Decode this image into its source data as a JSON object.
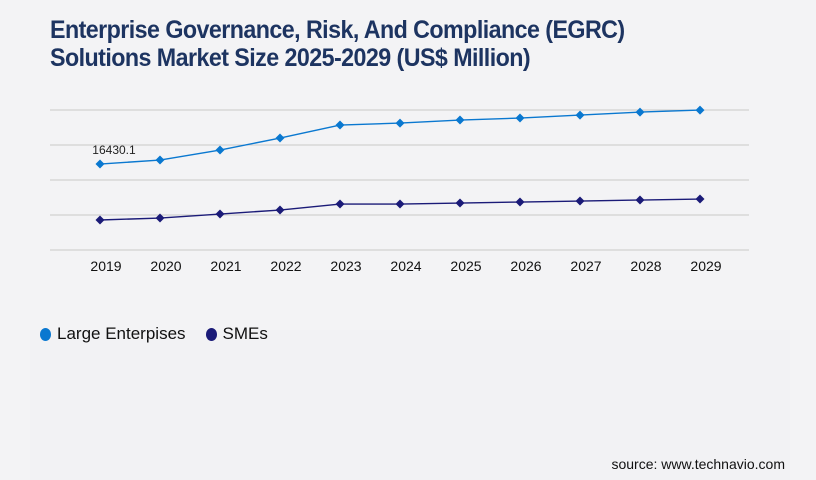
{
  "title": {
    "line1": "Enterprise Governance, Risk, And Compliance (EGRC)",
    "line2": "Solutions Market Size 2025-2029 (US$ Million)"
  },
  "source": "source: www.technavio.com",
  "colors": {
    "large_enterprises": "#0a78d0",
    "smes": "#1b1b78",
    "gridline": "#c8c8c8",
    "title": "#1d3461"
  },
  "legend": [
    {
      "label": "Large Enterpises",
      "color": "#0a78d0"
    },
    {
      "label": "SMEs",
      "color": "#1b1b78"
    }
  ],
  "chart_data": {
    "type": "line",
    "title": "Enterprise Governance, Risk, And Compliance (EGRC) Solutions Market Size 2025-2029 (US$ Million)",
    "xlabel": "",
    "ylabel": "",
    "x": [
      "2019",
      "2020",
      "2021",
      "2022",
      "2023",
      "2024",
      "2025",
      "2026",
      "2027",
      "2028",
      "2029"
    ],
    "ylim": [
      0,
      33450
    ],
    "grid": true,
    "legend_position": "bottom-left",
    "series": [
      {
        "name": "Large Enterpises",
        "values": [
          16430.1,
          17195,
          19105,
          21398,
          23881,
          24263,
          24837,
          25219,
          25792,
          26365,
          26747
        ]
      },
      {
        "name": "SMEs",
        "values": [
          5732,
          6114,
          6878,
          7642,
          8788,
          8788,
          8979,
          9170,
          9361,
          9553,
          9744
        ]
      }
    ],
    "annotations": [
      {
        "series": "Large Enterpises",
        "x": "2019",
        "text": "16430.1"
      }
    ]
  }
}
